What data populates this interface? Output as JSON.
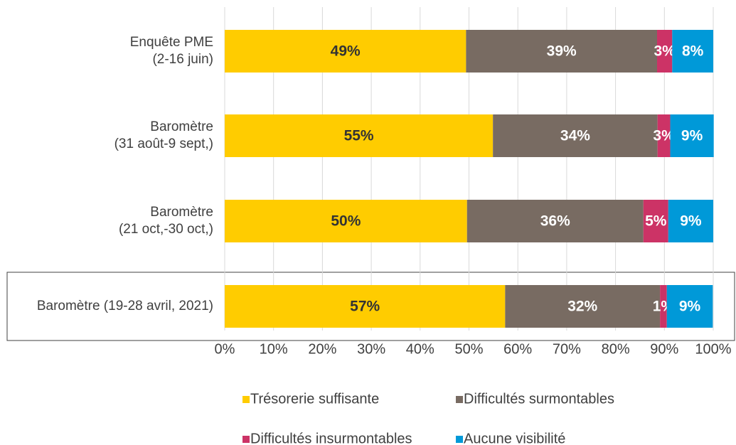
{
  "chart_data": {
    "type": "stacked-barh",
    "categories": [
      [
        "Enquête PME",
        "(2-16 juin)"
      ],
      [
        "Baromètre",
        "(31 août-9 sept,)"
      ],
      [
        "Baromètre",
        "(21 oct,-30 oct,)"
      ],
      [
        "Baromètre (19-28 avril, 2021)"
      ]
    ],
    "series": [
      {
        "name": "Trésorerie suffisante",
        "color": "#ffcc00",
        "label_color": "#333333",
        "values": [
          49.4,
          54.9,
          49.6,
          57.4
        ],
        "value_labels": [
          "49%",
          "55%",
          "50%",
          "57%"
        ]
      },
      {
        "name": "Difficultés surmontables",
        "color": "#786b62",
        "label_color": "#ffffff",
        "values": [
          39.1,
          33.7,
          36.1,
          31.7
        ],
        "value_labels": [
          "39%",
          "34%",
          "36%",
          "32%"
        ]
      },
      {
        "name": "Difficultés insurmontables",
        "color": "#cc3366",
        "label_color": "#ffffff",
        "values": [
          3.1,
          2.6,
          5.1,
          1.4
        ],
        "value_labels": [
          "3%",
          "3%",
          "5%",
          "1%"
        ]
      },
      {
        "name": "Aucune visibilité",
        "color": "#0099d8",
        "label_color": "#ffffff",
        "values": [
          8.4,
          8.9,
          9.2,
          9.4
        ],
        "value_labels": [
          "8%",
          "9%",
          "9%",
          "9%"
        ]
      }
    ],
    "xlim": [
      0,
      100
    ],
    "xticks": [
      {
        "value": 0,
        "label": "0%"
      },
      {
        "value": 10,
        "label": "10%"
      },
      {
        "value": 20,
        "label": "20%"
      },
      {
        "value": 30,
        "label": "30%"
      },
      {
        "value": 40,
        "label": "40%"
      },
      {
        "value": 50,
        "label": "50%"
      },
      {
        "value": 60,
        "label": "60%"
      },
      {
        "value": 70,
        "label": "70%"
      },
      {
        "value": 80,
        "label": "80%"
      },
      {
        "value": 90,
        "label": "90%"
      },
      {
        "value": 100,
        "label": "100%"
      }
    ],
    "grid": true,
    "legend": "bottom"
  }
}
